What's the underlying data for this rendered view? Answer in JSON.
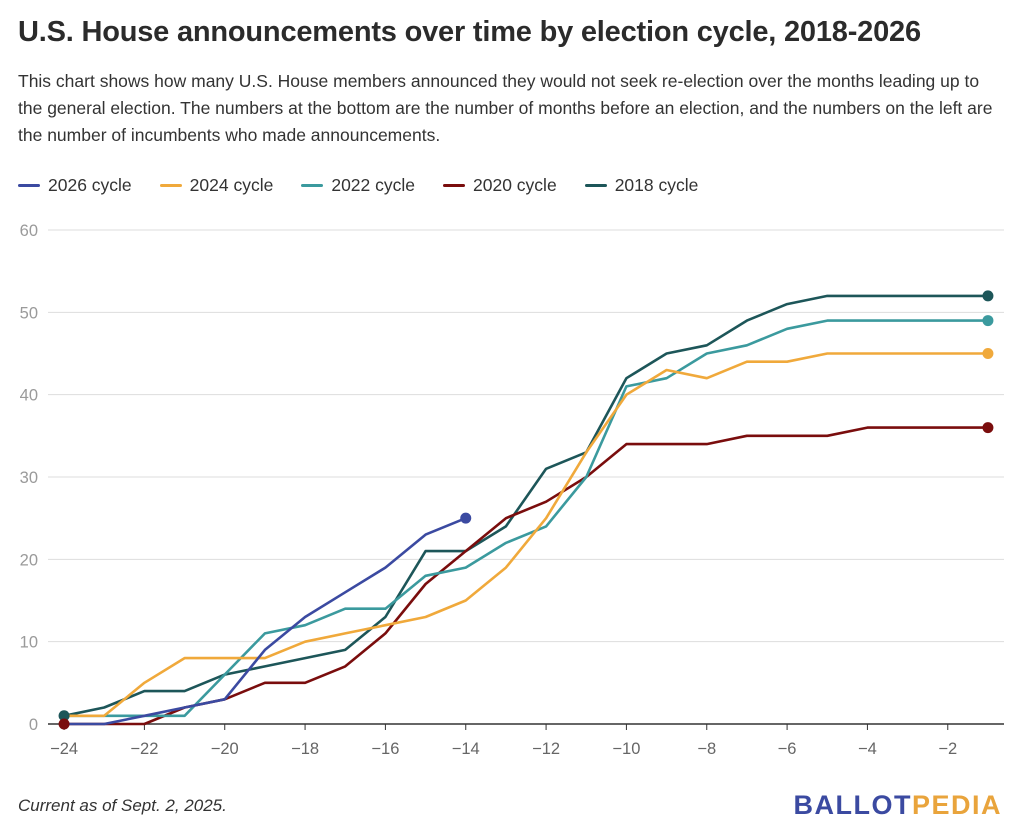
{
  "title": "U.S. House announcements over time by election cycle, 2018-2026",
  "subtitle": "This chart shows how many U.S. House members announced they would not seek re-election over the months leading up to the general election. The numbers at the bottom are the number of months before an election, and the numbers on the left are the number of incumbents who made announcements.",
  "footnote": "Current as of Sept. 2, 2025.",
  "logo": {
    "part1": "BALLOT",
    "part2": "PEDIA",
    "color1": "#3b4aa1",
    "color2": "#e9a43c"
  },
  "chart_data": {
    "type": "line",
    "xlim": [
      -24.4,
      -0.6
    ],
    "ylim": [
      0,
      60
    ],
    "x_ticks": [
      -24,
      -22,
      -20,
      -18,
      -16,
      -14,
      -12,
      -10,
      -8,
      -6,
      -4,
      -2
    ],
    "x_tick_labels": [
      "−24",
      "−22",
      "−20",
      "−18",
      "−16",
      "−14",
      "−12",
      "−10",
      "−8",
      "−6",
      "−4",
      "−2"
    ],
    "y_ticks": [
      0,
      10,
      20,
      30,
      40,
      50,
      60
    ],
    "y_tick_labels": [
      "0",
      "10",
      "20",
      "30",
      "40",
      "50",
      "60"
    ],
    "grid": "horizontal",
    "legend_position": "top-left",
    "series": [
      {
        "name": "2026 cycle",
        "color": "#3b4aa1",
        "end_marker": true,
        "x": [
          -24,
          -23,
          -22,
          -21,
          -20,
          -19,
          -18,
          -17,
          -16,
          -15,
          -14
        ],
        "y": [
          0,
          0,
          1,
          2,
          3,
          9,
          13,
          16,
          19,
          23,
          25
        ]
      },
      {
        "name": "2024 cycle",
        "color": "#f0a93b",
        "end_marker": true,
        "x": [
          -24,
          -23,
          -22,
          -21,
          -20,
          -19,
          -18,
          -17,
          -16,
          -15,
          -14,
          -13,
          -12,
          -11,
          -10,
          -9,
          -8,
          -7,
          -6,
          -5,
          -4,
          -3,
          -2,
          -1
        ],
        "y": [
          1,
          1,
          5,
          8,
          8,
          8,
          10,
          11,
          12,
          13,
          15,
          19,
          25,
          33,
          40,
          43,
          42,
          44,
          44,
          45,
          45,
          45,
          45,
          45
        ]
      },
      {
        "name": "2022 cycle",
        "color": "#3b9a9e",
        "end_marker": true,
        "x": [
          -24,
          -23,
          -22,
          -21,
          -20,
          -19,
          -18,
          -17,
          -16,
          -15,
          -14,
          -13,
          -12,
          -11,
          -10,
          -9,
          -8,
          -7,
          -6,
          -5,
          -4,
          -3,
          -2,
          -1
        ],
        "y": [
          1,
          1,
          1,
          1,
          6,
          11,
          12,
          14,
          14,
          18,
          19,
          22,
          24,
          30,
          41,
          42,
          45,
          46,
          48,
          49,
          49,
          49,
          49,
          49
        ]
      },
      {
        "name": "2020 cycle",
        "color": "#7a0d0d",
        "end_marker": true,
        "x": [
          -24,
          -23,
          -22,
          -21,
          -20,
          -19,
          -18,
          -17,
          -16,
          -15,
          -14,
          -13,
          -12,
          -11,
          -10,
          -9,
          -8,
          -7,
          -6,
          -5,
          -4,
          -3,
          -2,
          -1
        ],
        "y": [
          0,
          0,
          0,
          2,
          3,
          5,
          5,
          7,
          11,
          17,
          21,
          25,
          27,
          30,
          34,
          34,
          34,
          35,
          35,
          35,
          36,
          36,
          36,
          36
        ]
      },
      {
        "name": "2018 cycle",
        "color": "#1d5659",
        "end_marker": true,
        "x": [
          -24,
          -23,
          -22,
          -21,
          -20,
          -19,
          -18,
          -17,
          -16,
          -15,
          -14,
          -13,
          -12,
          -11,
          -10,
          -9,
          -8,
          -7,
          -6,
          -5,
          -4,
          -3,
          -2,
          -1
        ],
        "y": [
          1,
          2,
          4,
          4,
          6,
          7,
          8,
          9,
          13,
          21,
          21,
          24,
          31,
          33,
          42,
          45,
          46,
          49,
          51,
          52,
          52,
          52,
          52,
          52
        ]
      }
    ],
    "start_markers": [
      {
        "x": -24,
        "y": 1,
        "color": "#1d5659"
      },
      {
        "x": -24,
        "y": 0,
        "color": "#7a0d0d"
      }
    ]
  }
}
